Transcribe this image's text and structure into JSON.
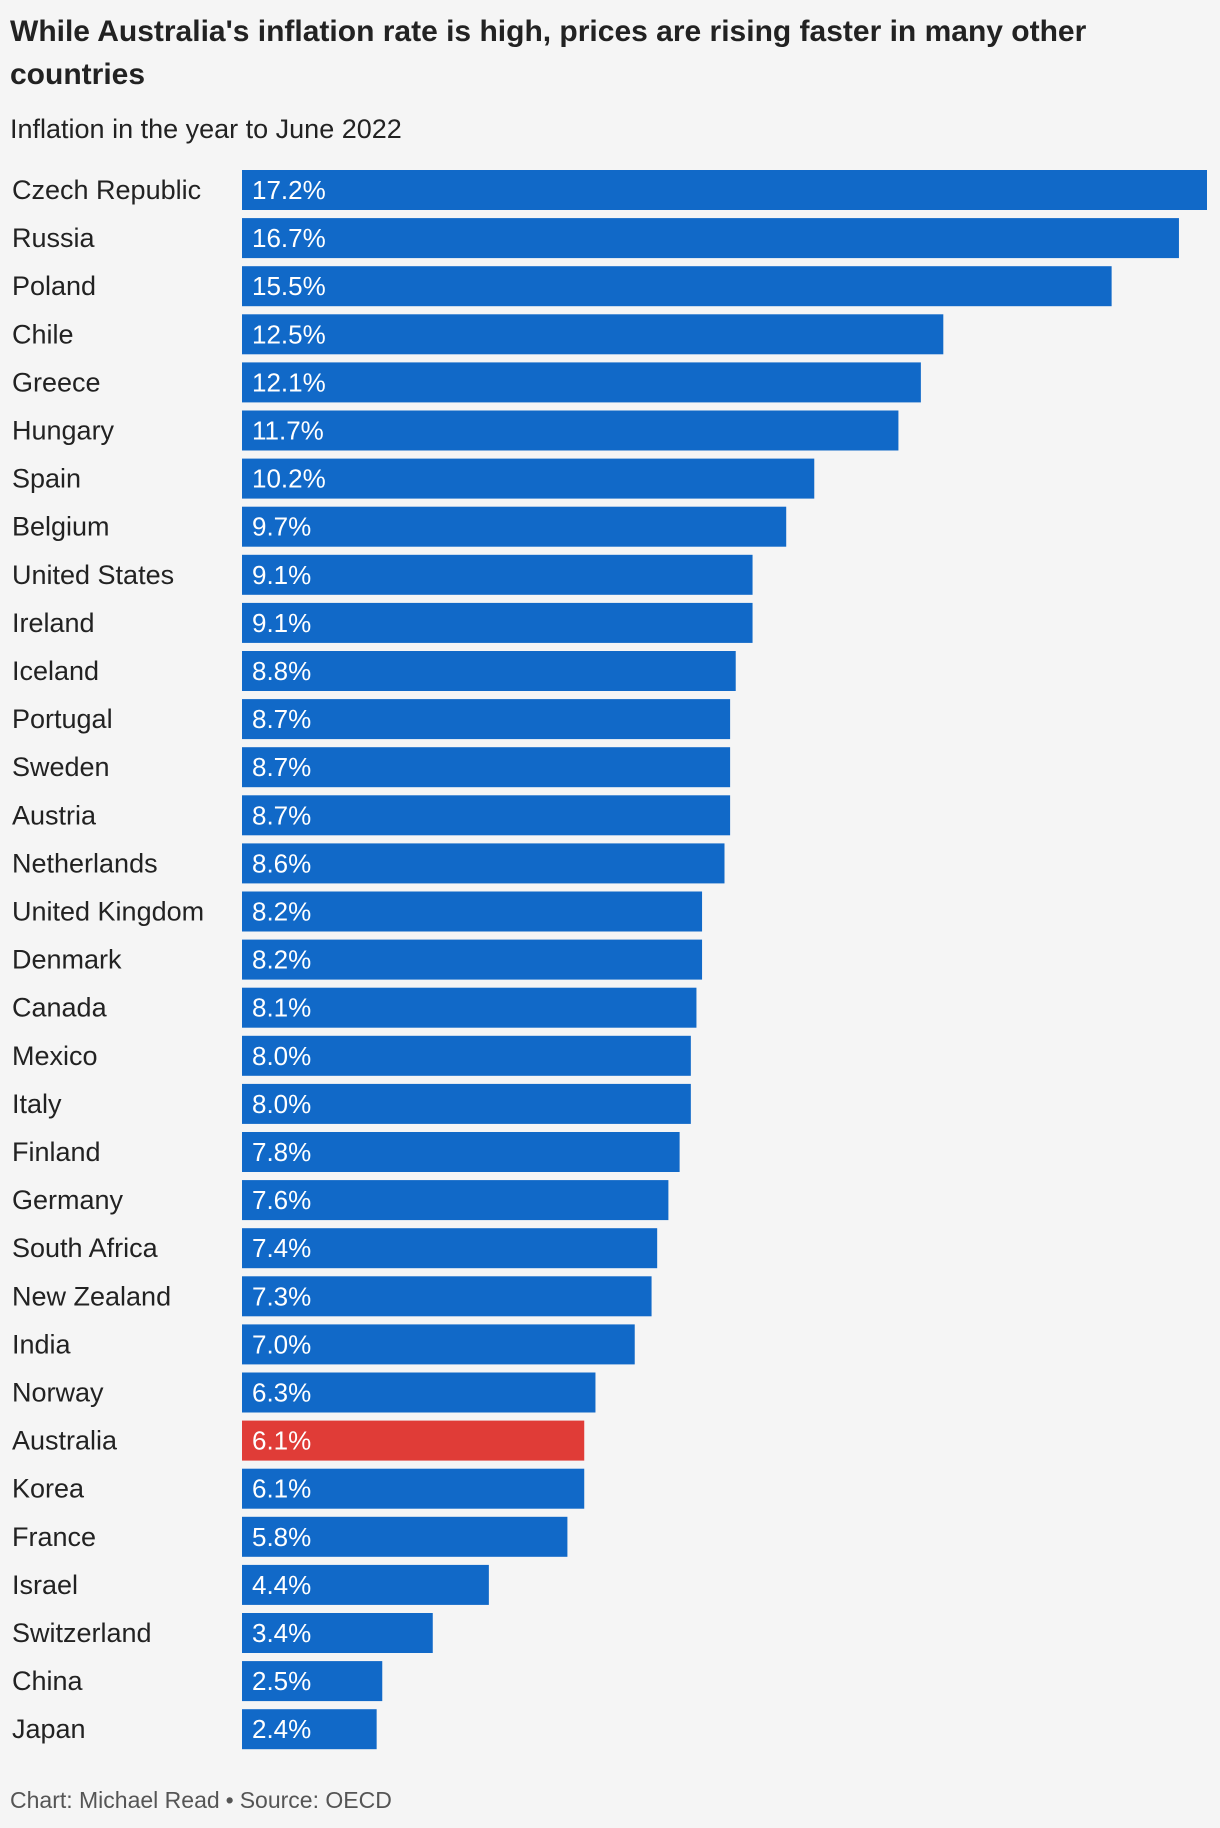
{
  "title": "While Australia's inflation rate is high, prices are rising faster in many other countries",
  "subtitle": "Inflation in the year to June 2022",
  "footer": {
    "credit": "Chart: Michael Read",
    "separator": "•",
    "source": "Source: OECD"
  },
  "colors": {
    "bar": "#1169c8",
    "highlight": "#e03c37",
    "background": "#f5f5f5"
  },
  "chart_data": {
    "type": "bar",
    "orientation": "horizontal",
    "title": "While Australia's inflation rate is high, prices are rising faster in many other countries",
    "subtitle": "Inflation in the year to June 2022",
    "highlight": "Australia",
    "value_suffix": "%",
    "categories": [
      "Czech Republic",
      "Russia",
      "Poland",
      "Chile",
      "Greece",
      "Hungary",
      "Spain",
      "Belgium",
      "United States",
      "Ireland",
      "Iceland",
      "Portugal",
      "Sweden",
      "Austria",
      "Netherlands",
      "United Kingdom",
      "Denmark",
      "Canada",
      "Mexico",
      "Italy",
      "Finland",
      "Germany",
      "South Africa",
      "New Zealand",
      "India",
      "Norway",
      "Australia",
      "Korea",
      "France",
      "Israel",
      "Switzerland",
      "China",
      "Japan"
    ],
    "values": [
      17.2,
      16.7,
      15.5,
      12.5,
      12.1,
      11.7,
      10.2,
      9.7,
      9.1,
      9.1,
      8.8,
      8.7,
      8.7,
      8.7,
      8.6,
      8.2,
      8.2,
      8.1,
      8.0,
      8.0,
      7.8,
      7.6,
      7.4,
      7.3,
      7.0,
      6.3,
      6.1,
      6.1,
      5.8,
      4.4,
      3.4,
      2.5,
      2.4
    ],
    "labels": [
      "17.2%",
      "16.7%",
      "15.5%",
      "12.5%",
      "12.1%",
      "11.7%",
      "10.2%",
      "9.7%",
      "9.1%",
      "9.1%",
      "8.8%",
      "8.7%",
      "8.7%",
      "8.7%",
      "8.6%",
      "8.2%",
      "8.2%",
      "8.1%",
      "8.0%",
      "8.0%",
      "7.8%",
      "7.6%",
      "7.4%",
      "7.3%",
      "7.0%",
      "6.3%",
      "6.1%",
      "6.1%",
      "5.8%",
      "4.4%",
      "3.4%",
      "2.5%",
      "2.4%"
    ],
    "xlim": [
      0,
      17.2
    ],
    "grid": false,
    "legend": "none"
  }
}
